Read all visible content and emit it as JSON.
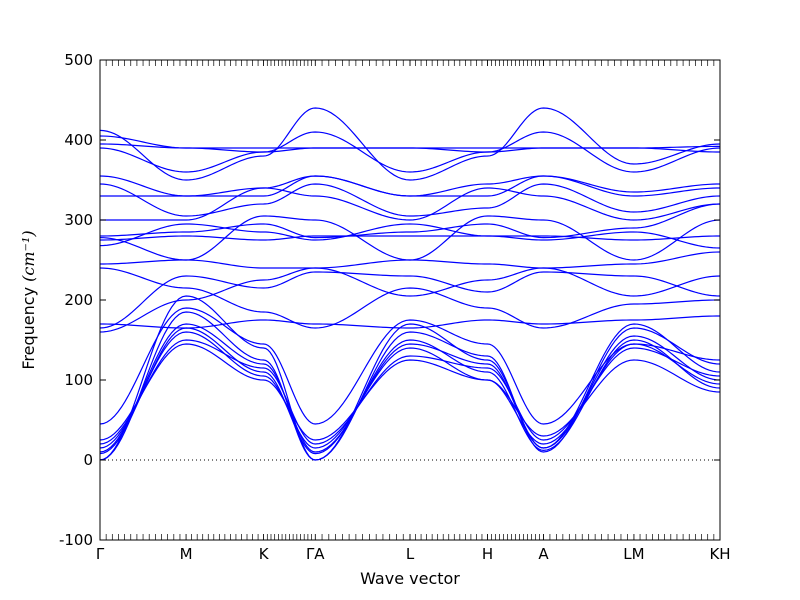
{
  "chart_data": {
    "type": "line",
    "title": "",
    "xlabel": "Wave vector",
    "ylabel": "Frequency ",
    "ylabel_unit": "(cm⁻¹)",
    "ylim": [
      -100,
      500
    ],
    "yticks": [
      -100,
      0,
      100,
      200,
      300,
      400,
      500
    ],
    "xlim": [
      0,
      7.2
    ],
    "zero_line": true,
    "grid": false,
    "legend": "none",
    "line_color": "#0000ff",
    "xticks": [
      {
        "x": 0.0,
        "label": "Γ"
      },
      {
        "x": 1.0,
        "label": "M"
      },
      {
        "x": 1.9,
        "label": "K"
      },
      {
        "x": 2.5,
        "label": "ΓA"
      },
      {
        "x": 3.6,
        "label": "L"
      },
      {
        "x": 4.5,
        "label": "H"
      },
      {
        "x": 5.15,
        "label": "A"
      },
      {
        "x": 6.2,
        "label": "LM"
      },
      {
        "x": 7.2,
        "label": "KH"
      }
    ],
    "path_segments": [
      {
        "from": "Γ",
        "to": "M",
        "x0": 0.0,
        "x1": 1.0
      },
      {
        "from": "M",
        "to": "K",
        "x0": 1.0,
        "x1": 1.9
      },
      {
        "from": "K",
        "to": "Γ",
        "x0": 1.9,
        "x1": 2.5
      },
      {
        "from": "A",
        "to": "L",
        "x0": 2.5,
        "x1": 3.6
      },
      {
        "from": "L",
        "to": "H",
        "x0": 3.6,
        "x1": 4.5
      },
      {
        "from": "H",
        "to": "A",
        "x0": 4.5,
        "x1": 5.15
      },
      {
        "from": "L",
        "to": "M",
        "x0": 5.15,
        "x1": 6.2
      },
      {
        "from": "K",
        "to": "H",
        "x0": 6.2,
        "x1": 7.2
      }
    ],
    "bands": [
      [
        0,
        185,
        125,
        0,
        170,
        125,
        15,
        170,
        110
      ],
      [
        0,
        205,
        140,
        0,
        160,
        130,
        10,
        165,
        120
      ],
      [
        8,
        165,
        110,
        8,
        150,
        110,
        12,
        150,
        90
      ],
      [
        10,
        170,
        120,
        10,
        145,
        120,
        15,
        155,
        100
      ],
      [
        15,
        160,
        105,
        15,
        140,
        100,
        20,
        145,
        95
      ],
      [
        20,
        150,
        115,
        20,
        130,
        115,
        25,
        140,
        105
      ],
      [
        25,
        145,
        100,
        25,
        125,
        100,
        30,
        125,
        85
      ],
      [
        45,
        190,
        145,
        45,
        175,
        145,
        45,
        145,
        125
      ],
      [
        160,
        200,
        225,
        240,
        205,
        225,
        240,
        205,
        230
      ],
      [
        165,
        230,
        215,
        235,
        230,
        210,
        235,
        230,
        205
      ],
      [
        170,
        165,
        175,
        170,
        165,
        175,
        170,
        175,
        180
      ],
      [
        240,
        215,
        185,
        165,
        215,
        190,
        165,
        195,
        200
      ],
      [
        245,
        250,
        240,
        240,
        250,
        245,
        240,
        245,
        260
      ],
      [
        268,
        295,
        285,
        275,
        295,
        280,
        275,
        285,
        265
      ],
      [
        275,
        280,
        275,
        280,
        280,
        280,
        280,
        275,
        280
      ],
      [
        278,
        250,
        305,
        300,
        250,
        305,
        300,
        250,
        300
      ],
      [
        280,
        285,
        295,
        278,
        285,
        295,
        278,
        290,
        320
      ],
      [
        300,
        300,
        340,
        330,
        300,
        340,
        330,
        300,
        320
      ],
      [
        330,
        330,
        340,
        355,
        330,
        345,
        355,
        330,
        340
      ],
      [
        345,
        305,
        320,
        345,
        305,
        315,
        345,
        310,
        330
      ],
      [
        355,
        330,
        330,
        355,
        330,
        330,
        355,
        335,
        345
      ],
      [
        390,
        360,
        385,
        410,
        360,
        385,
        410,
        360,
        390
      ],
      [
        395,
        390,
        385,
        390,
        390,
        385,
        390,
        390,
        392
      ],
      [
        405,
        390,
        390,
        390,
        390,
        390,
        390,
        390,
        385
      ],
      [
        412,
        350,
        380,
        440,
        350,
        380,
        440,
        370,
        395
      ]
    ]
  }
}
